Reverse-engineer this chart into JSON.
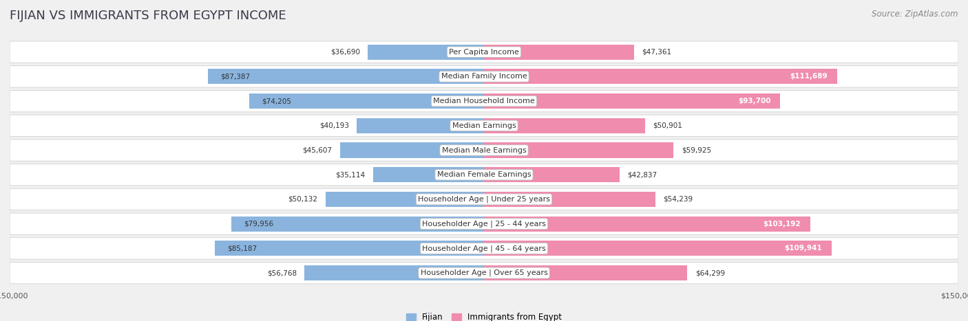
{
  "title": "Fijian vs Immigrants from Egypt Income",
  "source": "Source: ZipAtlas.com",
  "categories": [
    "Per Capita Income",
    "Median Family Income",
    "Median Household Income",
    "Median Earnings",
    "Median Male Earnings",
    "Median Female Earnings",
    "Householder Age | Under 25 years",
    "Householder Age | 25 - 44 years",
    "Householder Age | 45 - 64 years",
    "Householder Age | Over 65 years"
  ],
  "fijian_values": [
    36690,
    87387,
    74205,
    40193,
    45607,
    35114,
    50132,
    79956,
    85187,
    56768
  ],
  "egypt_values": [
    47361,
    111689,
    93700,
    50901,
    59925,
    42837,
    54239,
    103192,
    109941,
    64299
  ],
  "fijian_color": "#8ab4de",
  "egypt_color": "#f08cad",
  "fijian_label": "Fijian",
  "egypt_label": "Immigrants from Egypt",
  "xlim": 150000,
  "bg_color": "#f0f0f0",
  "row_bg_color": "#ffffff",
  "title_fontsize": 13,
  "source_fontsize": 8.5,
  "cat_fontsize": 8,
  "value_fontsize": 7.5,
  "legend_fontsize": 8.5,
  "inside_threshold_fijian": 60000,
  "inside_threshold_egypt": 80000
}
